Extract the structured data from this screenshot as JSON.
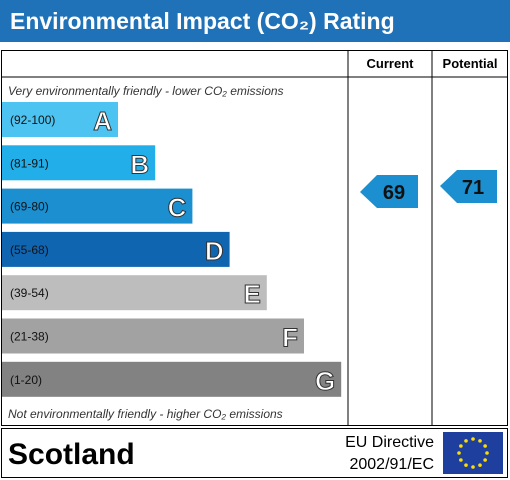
{
  "header": {
    "title": "Environmental Impact (CO₂) Rating"
  },
  "columns": [
    "Current",
    "Potential"
  ],
  "top_note": "Very environmentally friendly - lower CO₂ emissions",
  "bottom_note": "Not environmentally friendly - higher CO₂ emissions",
  "bands": [
    {
      "range": "(92-100)",
      "letter": "A"
    },
    {
      "range": "(81-91)",
      "letter": "B"
    },
    {
      "range": "(69-80)",
      "letter": "C"
    },
    {
      "range": "(55-68)",
      "letter": "D"
    },
    {
      "range": "(39-54)",
      "letter": "E"
    },
    {
      "range": "(21-38)",
      "letter": "F"
    },
    {
      "range": "(1-20)",
      "letter": "G"
    }
  ],
  "ratings": {
    "current": 69,
    "potential": 71
  },
  "footer": {
    "region": "Scotland",
    "directive": [
      "EU Directive",
      "2002/91/EC"
    ]
  }
}
